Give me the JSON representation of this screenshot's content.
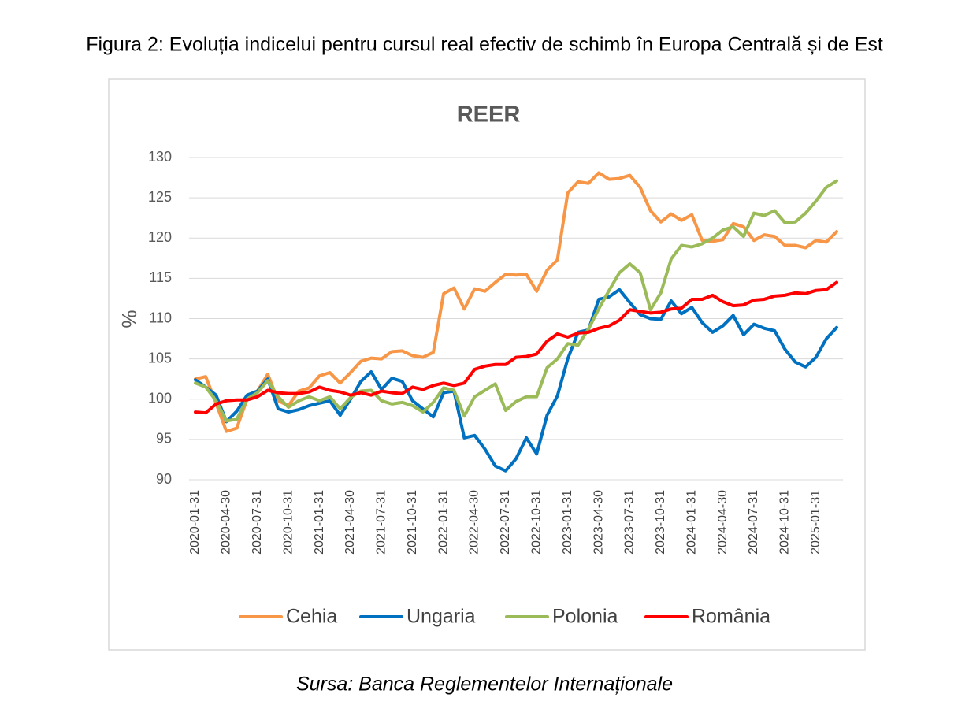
{
  "figure_caption": "Figura 2: Evoluția indicelui pentru cursul real efectiv de schimb în Europa Centrală și de Est",
  "source": "Sursa: Banca Reglementelor Internaționale",
  "chart_data": {
    "type": "line",
    "title": "REER",
    "y_label": "%",
    "categories": [
      "2020-01-31",
      null,
      null,
      "2020-04-30",
      null,
      null,
      "2020-07-31",
      null,
      null,
      "2020-10-31",
      null,
      null,
      "2021-01-31",
      null,
      null,
      "2021-04-30",
      null,
      null,
      "2021-07-31",
      null,
      null,
      "2021-10-31",
      null,
      null,
      "2022-01-31",
      null,
      null,
      "2022-04-30",
      null,
      null,
      "2022-07-31",
      null,
      null,
      "2022-10-31",
      null,
      null,
      "2023-01-31",
      null,
      null,
      "2023-04-30",
      null,
      null,
      "2023-07-31",
      null,
      null,
      "2023-10-31",
      null,
      null,
      "2024-01-31",
      null,
      null,
      "2024-04-30",
      null,
      null,
      "2024-07-31",
      null,
      null,
      "2024-10-31",
      null,
      null,
      "2025-01-31",
      null,
      null
    ],
    "series": [
      {
        "name": "Cehia",
        "color": "#f79646",
        "values": [
          102.5,
          102.8,
          99.5,
          96,
          96.4,
          100,
          101,
          103.1,
          99.8,
          99.2,
          101,
          101.4,
          102.9,
          103.3,
          102,
          103.3,
          104.7,
          105.1,
          105,
          105.9,
          106,
          105.4,
          105.2,
          105.8,
          113.1,
          113.8,
          111.2,
          113.7,
          113.4,
          114.5,
          115.5,
          115.4,
          115.5,
          113.4,
          116,
          117.3,
          125.6,
          127,
          126.8,
          128.1,
          127.3,
          127.4,
          127.8,
          126.3,
          123.4,
          122,
          123,
          122.2,
          122.9,
          119.7,
          119.6,
          119.8,
          121.8,
          121.4,
          119.7,
          120.4,
          120.2,
          119.1,
          119.1,
          118.8,
          119.7,
          119.5,
          120.8
        ]
      },
      {
        "name": "Ungaria",
        "color": "#0070c0",
        "values": [
          102.4,
          101.5,
          100.5,
          97.2,
          98.5,
          100.5,
          101,
          102.5,
          98.8,
          98.4,
          98.7,
          99.2,
          99.5,
          99.8,
          98,
          100,
          102.2,
          103.4,
          101.2,
          102.6,
          102.2,
          99.8,
          98.8,
          97.8,
          100.8,
          101,
          95.2,
          95.5,
          93.8,
          91.7,
          91.1,
          92.6,
          95.2,
          93.2,
          98,
          100.4,
          105,
          108.3,
          108.6,
          112.4,
          112.7,
          113.6,
          112,
          110.5,
          110,
          109.9,
          112.2,
          110.6,
          111.4,
          109.5,
          108.3,
          109.1,
          110.4,
          108,
          109.3,
          108.8,
          108.5,
          106.2,
          104.6,
          104,
          105.2,
          107.5,
          108.9
        ]
      },
      {
        "name": "Polonia",
        "color": "#9bbb59",
        "values": [
          102,
          101.5,
          99.8,
          97.3,
          97.5,
          100,
          100.8,
          102.3,
          100.3,
          99,
          99.8,
          100.3,
          99.8,
          100.3,
          98.8,
          100.2,
          101,
          101.1,
          99.8,
          99.4,
          99.6,
          99.2,
          98.4,
          99.6,
          101.4,
          101.1,
          97.9,
          100.3,
          101.1,
          101.9,
          98.6,
          99.7,
          100.3,
          100.3,
          103.9,
          105,
          106.9,
          106.7,
          108.7,
          111.2,
          113.5,
          115.7,
          116.8,
          115.7,
          111.1,
          113.2,
          117.4,
          119.1,
          118.9,
          119.3,
          120,
          121,
          121.4,
          120.2,
          123.1,
          122.8,
          123.4,
          121.9,
          122,
          123.1,
          124.6,
          126.3,
          127.1
        ]
      },
      {
        "name": "România",
        "color": "#ff0000",
        "values": [
          98.4,
          98.3,
          99.4,
          99.8,
          99.9,
          99.9,
          100.3,
          101.1,
          100.8,
          100.7,
          100.7,
          100.9,
          101.5,
          101.1,
          100.9,
          100.5,
          100.8,
          100.5,
          101,
          100.8,
          100.7,
          101.5,
          101.2,
          101.7,
          102,
          101.7,
          102,
          103.7,
          104.1,
          104.3,
          104.3,
          105.2,
          105.3,
          105.6,
          107.2,
          108.1,
          107.7,
          108.2,
          108.3,
          108.8,
          109.1,
          109.8,
          111.1,
          110.9,
          110.7,
          110.8,
          111.2,
          111.3,
          112.4,
          112.4,
          112.9,
          112.1,
          111.6,
          111.7,
          112.3,
          112.4,
          112.8,
          112.9,
          113.2,
          113.1,
          113.5,
          113.6,
          114.5
        ]
      }
    ],
    "ylim": [
      90,
      130
    ],
    "yticks": [
      90,
      95,
      100,
      105,
      110,
      115,
      120,
      125,
      130
    ],
    "grid": true,
    "legend": "bottom"
  }
}
